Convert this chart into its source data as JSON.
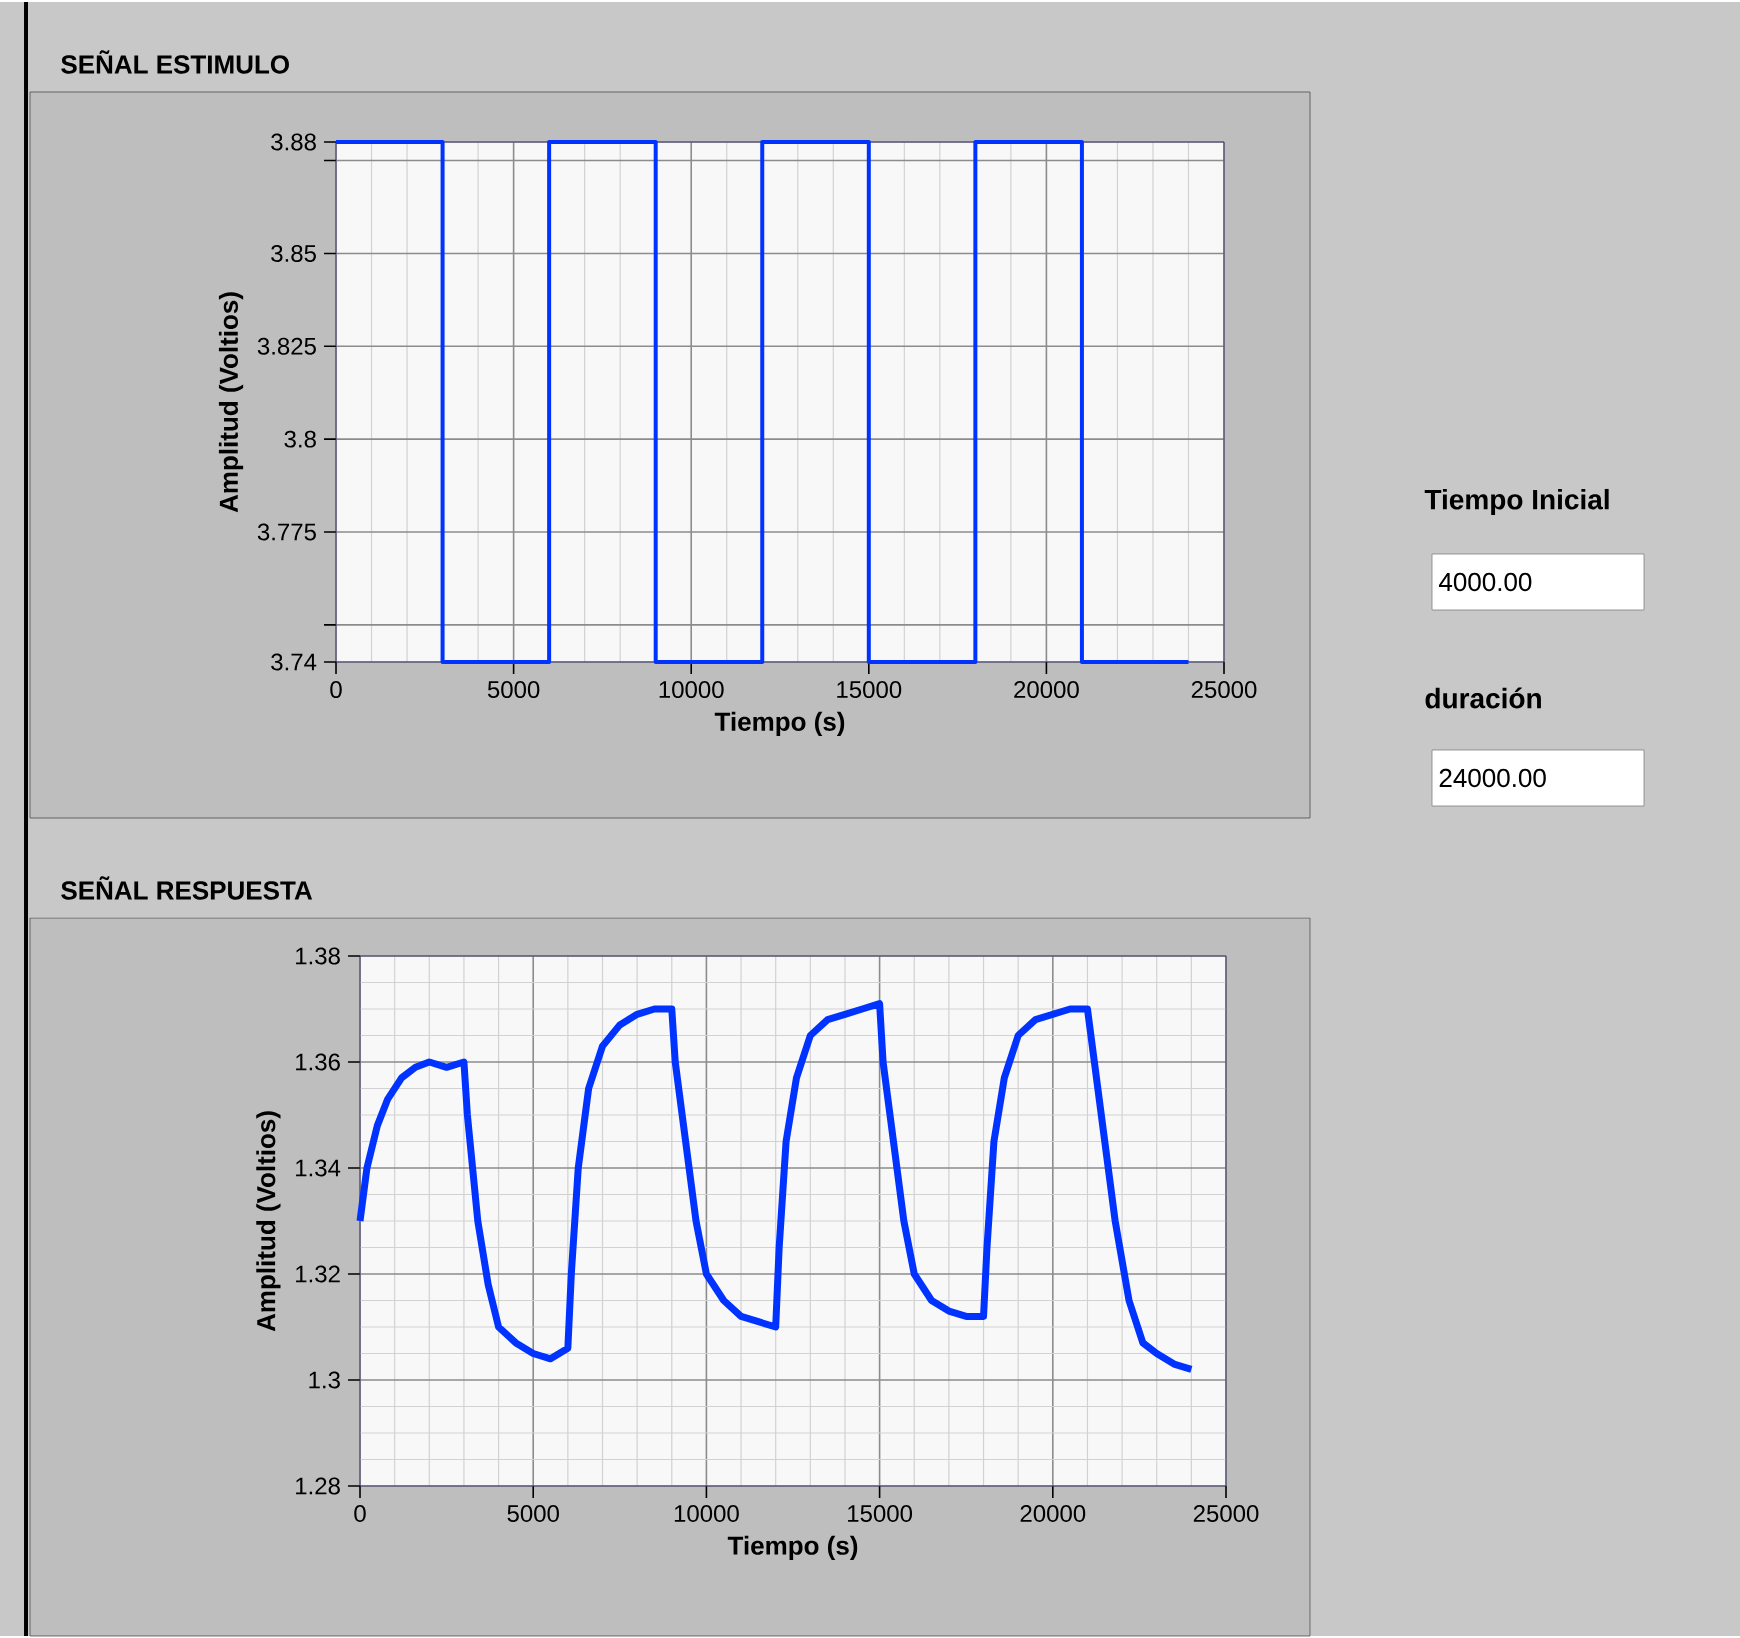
{
  "chart_data": [
    {
      "type": "step",
      "title": "SEÑAL ESTIMULO",
      "xlabel": "Tiempo (s)",
      "ylabel": "Amplitud (Voltios)",
      "xlim": [
        0,
        25000
      ],
      "xticks": [
        0,
        5000,
        10000,
        15000,
        20000,
        25000
      ],
      "ylim": [
        3.74,
        3.88
      ],
      "yticks": [
        3.74,
        {
          "value": 3.75,
          "label": null
        },
        3.775,
        3.8,
        3.825,
        3.85,
        {
          "value": 3.875,
          "label": null
        },
        3.88
      ],
      "grid": true,
      "color": "#0033ff",
      "x": [
        0,
        3000,
        6000,
        9000,
        12000,
        15000,
        18000,
        21000,
        24000
      ],
      "values": [
        3.88,
        3.74,
        3.88,
        3.74,
        3.88,
        3.74,
        3.88,
        3.74,
        3.74
      ]
    },
    {
      "type": "line",
      "title": "SEÑAL RESPUESTA",
      "xlabel": "Tiempo (s)",
      "ylabel": "Amplitud (Voltios)",
      "xlim": [
        0,
        25000
      ],
      "xticks": [
        0,
        5000,
        10000,
        15000,
        20000,
        25000
      ],
      "ylim": [
        1.28,
        1.38
      ],
      "yticks": [
        1.28,
        1.3,
        1.32,
        1.34,
        1.36,
        1.38
      ],
      "grid": true,
      "color": "#0033ff",
      "x": [
        0,
        200,
        500,
        800,
        1200,
        1600,
        2000,
        2500,
        3000,
        3100,
        3400,
        3700,
        4000,
        4500,
        5000,
        5500,
        6000,
        6100,
        6300,
        6600,
        7000,
        7500,
        8000,
        8500,
        9000,
        9100,
        9400,
        9700,
        10000,
        10500,
        11000,
        11500,
        12000,
        12100,
        12300,
        12600,
        13000,
        13500,
        14000,
        14500,
        15000,
        15100,
        15400,
        15700,
        16000,
        16500,
        17000,
        17500,
        18000,
        18100,
        18300,
        18600,
        19000,
        19500,
        20000,
        20500,
        21000,
        21200,
        21500,
        21800,
        22200,
        22600,
        23000,
        23500,
        24000
      ],
      "values": [
        1.33,
        1.34,
        1.348,
        1.353,
        1.357,
        1.359,
        1.36,
        1.359,
        1.36,
        1.35,
        1.33,
        1.318,
        1.31,
        1.307,
        1.305,
        1.304,
        1.306,
        1.32,
        1.34,
        1.355,
        1.363,
        1.367,
        1.369,
        1.37,
        1.37,
        1.36,
        1.345,
        1.33,
        1.32,
        1.315,
        1.312,
        1.311,
        1.31,
        1.325,
        1.345,
        1.357,
        1.365,
        1.368,
        1.369,
        1.37,
        1.371,
        1.36,
        1.345,
        1.33,
        1.32,
        1.315,
        1.313,
        1.312,
        1.312,
        1.325,
        1.345,
        1.357,
        1.365,
        1.368,
        1.369,
        1.37,
        1.37,
        1.36,
        1.345,
        1.33,
        1.315,
        1.307,
        1.305,
        1.303,
        1.302
      ]
    },
    {
      "type": "other",
      "annotations": [
        "Tiempo Inicial",
        "4000.00",
        "duración",
        "24000.00"
      ]
    }
  ]
}
